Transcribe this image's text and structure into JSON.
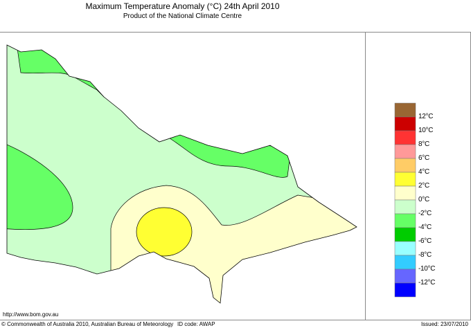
{
  "title": "Maximum Temperature Anomaly (°C)  24th April 2010",
  "subtitle": "Product of the National Climate Centre",
  "legend": {
    "colors": [
      "#996633",
      "#cc0000",
      "#ff3333",
      "#ff9999",
      "#ffcc66",
      "#ffff33",
      "#ffffcc",
      "#ccffcc",
      "#66ff66",
      "#00cc00",
      "#99ffff",
      "#33ccff",
      "#6666ff",
      "#0000ff"
    ],
    "labels": [
      "12°C",
      "10°C",
      "8°C",
      "6°C",
      "4°C",
      "2°C",
      "0°C",
      "-2°C",
      "-4°C",
      "-6°C",
      "-8°C",
      "-10°C",
      "-12°C"
    ]
  },
  "region_colors": {
    "base": "#ccffcc",
    "warm": "#ffffcc",
    "warmer": "#ffff33",
    "cool": "#66ff66"
  },
  "url": "http://www.bom.gov.au",
  "copyright": "© Commonwealth of Australia 2010, Australian Bureau of Meteorology",
  "id_code": "ID code: AWAP",
  "issued": "Issued: 23/07/2010"
}
